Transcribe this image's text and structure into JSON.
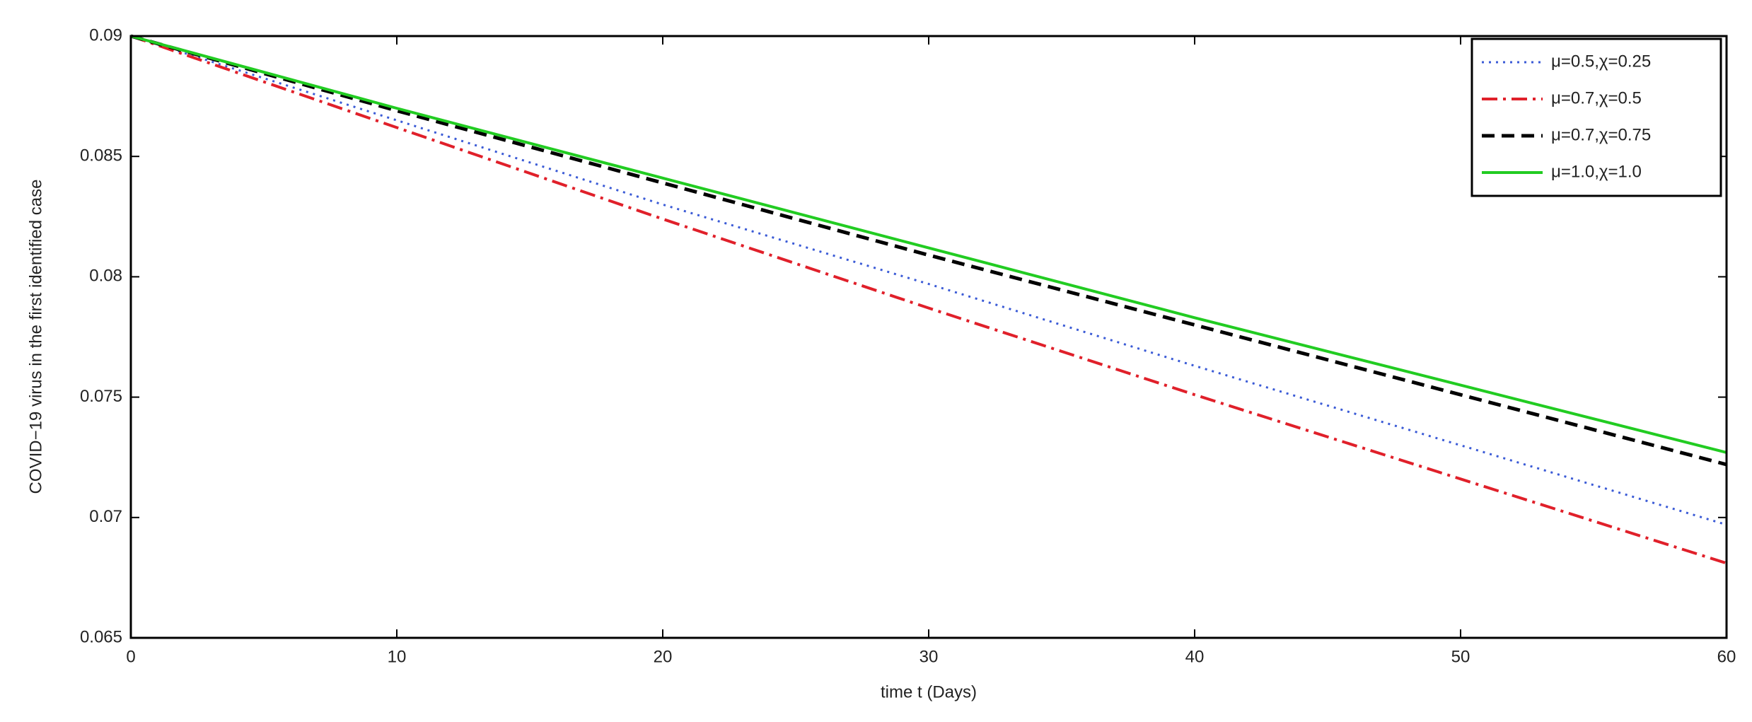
{
  "chart_data": {
    "type": "line",
    "x_label": "time t (Days)",
    "y_label": "COVID−19 virus in the first identified case",
    "x": [
      0,
      10,
      20,
      30,
      40,
      50,
      60
    ],
    "series": [
      {
        "name": "μ=0.5,χ=0.25",
        "color": "#3b5bd6",
        "style": "dotted",
        "values": [
          0.09,
          0.0865,
          0.083,
          0.0797,
          0.0763,
          0.073,
          0.0697
        ]
      },
      {
        "name": "μ=0.7,χ=0.5",
        "color": "#e0202a",
        "style": "dashdot",
        "values": [
          0.09,
          0.0862,
          0.0824,
          0.0787,
          0.0751,
          0.0716,
          0.0681
        ]
      },
      {
        "name": "μ=0.7,χ=0.75",
        "color": "#000000",
        "style": "dashed",
        "values": [
          0.09,
          0.0869,
          0.0839,
          0.0809,
          0.078,
          0.0751,
          0.0722
        ]
      },
      {
        "name": "μ=1.0,χ=1.0",
        "color": "#22cc22",
        "style": "solid",
        "values": [
          0.09,
          0.087,
          0.0841,
          0.0812,
          0.0783,
          0.0755,
          0.0727
        ]
      }
    ],
    "xlim": [
      0,
      60
    ],
    "xticks": [
      0,
      10,
      20,
      30,
      40,
      50,
      60
    ],
    "ylim": [
      0.065,
      0.09
    ],
    "yticks": [
      0.065,
      0.07,
      0.075,
      0.08,
      0.085,
      0.09
    ],
    "grid": false,
    "legend": "upper right"
  }
}
